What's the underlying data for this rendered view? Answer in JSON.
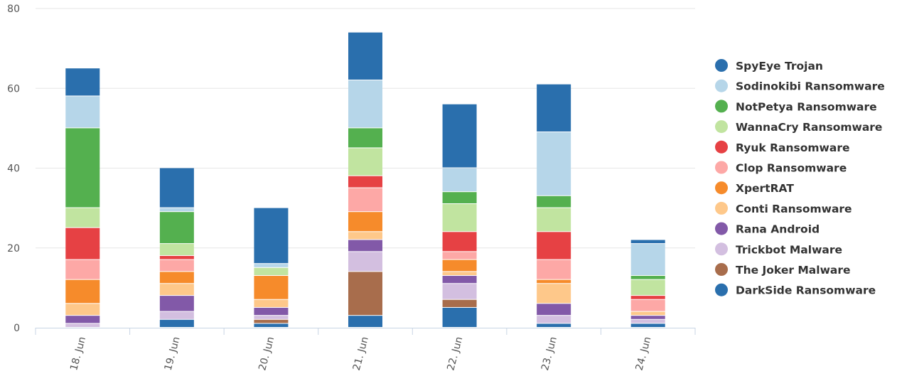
{
  "chart_data": {
    "type": "bar",
    "stacked": true,
    "categories": [
      "18. Jun",
      "19. Jun",
      "20. Jun",
      "21. Jun",
      "22. Jun",
      "23. Jun",
      "24. Jun"
    ],
    "ylim": [
      0,
      80
    ],
    "yticks": [
      0,
      20,
      40,
      60,
      80
    ],
    "grid": true,
    "legend_position": "right",
    "series": [
      {
        "name": "DarkSide Ransomware",
        "color": "#2a6fad",
        "values": [
          0,
          2,
          1,
          3,
          5,
          1,
          1
        ]
      },
      {
        "name": "The Joker Malware",
        "color": "#a86d4c",
        "values": [
          0,
          0,
          1,
          11,
          2,
          0,
          0
        ]
      },
      {
        "name": "Trickbot Malware",
        "color": "#d3bfe0",
        "values": [
          1,
          2,
          1,
          5,
          4,
          2,
          1
        ]
      },
      {
        "name": "Rana Android",
        "color": "#8259a8",
        "values": [
          2,
          4,
          2,
          3,
          2,
          3,
          1
        ]
      },
      {
        "name": "Conti Ransomware",
        "color": "#fec88a",
        "values": [
          3,
          3,
          2,
          2,
          1,
          5,
          1
        ]
      },
      {
        "name": "XpertRAT",
        "color": "#f68b2b",
        "values": [
          6,
          3,
          6,
          5,
          3,
          1,
          0
        ]
      },
      {
        "name": "Clop Ransomware",
        "color": "#fda8a6",
        "values": [
          5,
          3,
          0,
          6,
          2,
          5,
          3
        ]
      },
      {
        "name": "Ryuk Ransomware",
        "color": "#e64144",
        "values": [
          8,
          1,
          0,
          3,
          5,
          7,
          1
        ]
      },
      {
        "name": "WannaCry Ransomware",
        "color": "#c1e4a0",
        "values": [
          5,
          3,
          2,
          7,
          7,
          6,
          4
        ]
      },
      {
        "name": "NotPetya Ransomware",
        "color": "#54b04f",
        "values": [
          20,
          8,
          0,
          5,
          3,
          3,
          1
        ]
      },
      {
        "name": "Sodinokibi Ransomware",
        "color": "#b6d6e9",
        "values": [
          8,
          1,
          1,
          12,
          6,
          16,
          8
        ]
      },
      {
        "name": "SpyEye Trojan",
        "color": "#2a6fad",
        "values": [
          7,
          10,
          14,
          12,
          16,
          12,
          1
        ]
      }
    ],
    "legend_order": [
      "SpyEye Trojan",
      "Sodinokibi Ransomware",
      "NotPetya Ransomware",
      "WannaCry Ransomware",
      "Ryuk Ransomware",
      "Clop Ransomware",
      "XpertRAT",
      "Conti Ransomware",
      "Rana Android",
      "Trickbot Malware",
      "The Joker Malware",
      "DarkSide Ransomware"
    ]
  },
  "colors": {
    "grid": "#e6e6e6",
    "axis": "#c8d4e4",
    "tick_text": "#555555",
    "legend_text": "#333333"
  }
}
